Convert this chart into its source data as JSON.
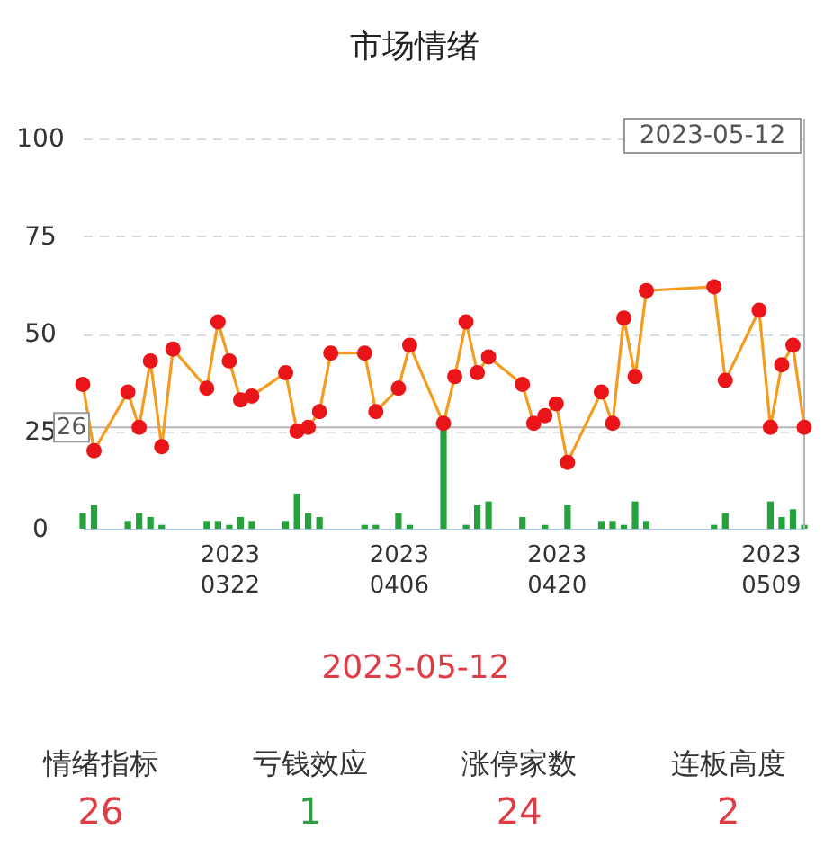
{
  "chart_data": {
    "type": "line",
    "title": "市场情绪",
    "x": [
      "2023-03-09",
      "2023-03-10",
      "2023-03-13",
      "2023-03-14",
      "2023-03-15",
      "2023-03-16",
      "2023-03-17",
      "2023-03-20",
      "2023-03-21",
      "2023-03-22",
      "2023-03-23",
      "2023-03-24",
      "2023-03-27",
      "2023-03-28",
      "2023-03-29",
      "2023-03-30",
      "2023-03-31",
      "2023-04-03",
      "2023-04-04",
      "2023-04-06",
      "2023-04-07",
      "2023-04-10",
      "2023-04-11",
      "2023-04-12",
      "2023-04-13",
      "2023-04-14",
      "2023-04-17",
      "2023-04-18",
      "2023-04-19",
      "2023-04-20",
      "2023-04-21",
      "2023-04-24",
      "2023-04-25",
      "2023-04-26",
      "2023-04-27",
      "2023-04-28",
      "2023-05-04",
      "2023-05-05",
      "2023-05-08",
      "2023-05-09",
      "2023-05-10",
      "2023-05-11",
      "2023-05-12"
    ],
    "series": [
      {
        "type": "bar",
        "color": "#25a23c",
        "values": [
          4,
          6,
          2,
          4,
          3,
          1,
          null,
          2,
          2,
          1,
          3,
          2,
          2,
          9,
          4,
          3,
          null,
          1,
          1,
          4,
          1,
          26,
          null,
          1,
          6,
          7,
          3,
          null,
          1,
          null,
          6,
          2,
          2,
          1,
          7,
          2,
          1,
          4,
          null,
          7,
          3,
          5,
          1
        ]
      },
      {
        "color": "#f39c1f",
        "values": [
          37,
          20,
          35,
          26,
          43,
          21,
          46,
          36,
          53,
          43,
          33,
          34,
          40,
          25,
          26,
          30,
          45,
          45,
          30,
          36,
          47,
          27,
          39,
          53,
          40,
          44,
          37,
          27,
          29,
          32,
          17,
          35,
          27,
          54,
          39,
          61,
          62,
          38,
          56,
          26,
          42,
          47,
          26
        ]
      }
    ],
    "xlim": [
      "2023-03-09",
      "2023-05-12"
    ],
    "xticks": [
      {
        "value": "2023-03-22",
        "label": "2023\n0322"
      },
      {
        "value": "2023-04-06",
        "label": "2023\n0406"
      },
      {
        "value": "2023-04-20",
        "label": "2023\n0420"
      },
      {
        "value": "2023-05-09",
        "label": "2023\n0509"
      }
    ],
    "ylim": [
      0,
      100
    ],
    "yticks": [
      0,
      25,
      50,
      75,
      100
    ],
    "grid": "y",
    "marker": "circle",
    "line_style": "solid",
    "ref_lines": [
      {
        "axis": "y",
        "value": 26,
        "label": "26",
        "color": "#b5b5b5"
      },
      {
        "axis": "x",
        "value": "2023-05-12",
        "label": "2023-05-12",
        "color": "#b5b5b5"
      }
    ],
    "annotations": [
      "2023-05-12",
      "情绪指标",
      "26",
      "亏钱效应",
      "1",
      "涨停家数",
      "24",
      "连板高度",
      "2"
    ]
  }
}
